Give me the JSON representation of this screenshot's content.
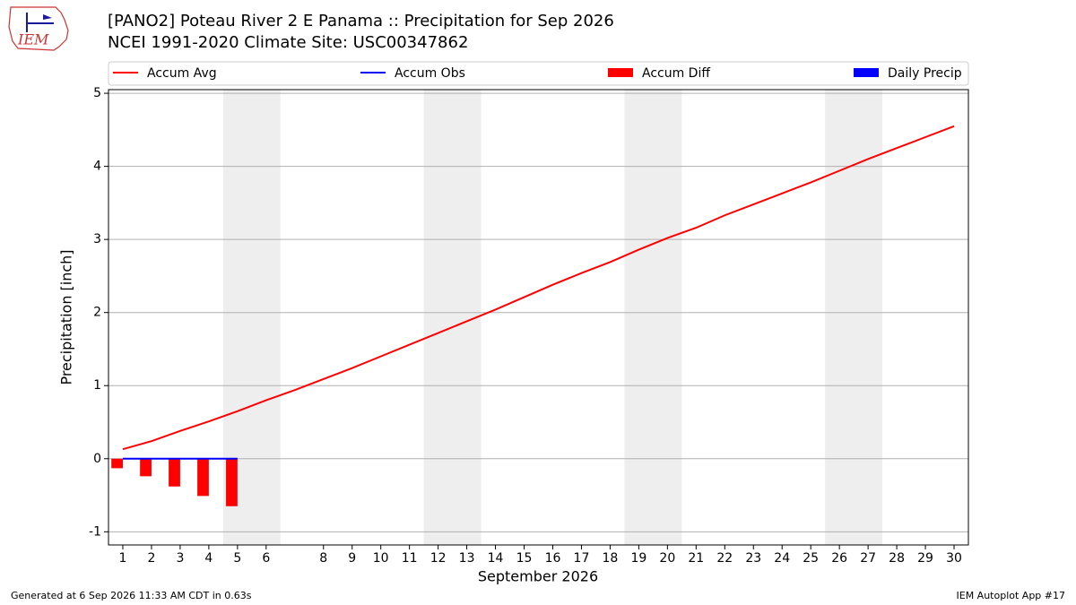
{
  "chart_data": {
    "type": "line",
    "title": "[PANO2] Poteau River 2 E Panama :: Precipitation for Sep 2026",
    "subtitle": "NCEI 1991-2020 Climate Site: USC00347862",
    "xlabel": "September 2026",
    "ylabel": "Precipitation [inch]",
    "logo_text": "IEM",
    "footer_left": "Generated at 6 Sep 2026 11:33 AM CDT in 0.63s",
    "footer_right": "IEM Autoplot App #17",
    "xlim": [
      0.5,
      30.5
    ],
    "ylim": [
      -1.18,
      5.05
    ],
    "xticks": [
      1,
      2,
      3,
      4,
      5,
      6,
      8,
      9,
      10,
      11,
      12,
      13,
      14,
      15,
      16,
      17,
      18,
      19,
      20,
      21,
      22,
      23,
      24,
      25,
      26,
      27,
      28,
      29,
      30
    ],
    "yticks": [
      -1,
      0,
      1,
      2,
      3,
      4,
      5
    ],
    "grid": true,
    "weekend_spans": [
      [
        4.5,
        6.5
      ],
      [
        11.5,
        13.5
      ],
      [
        18.5,
        20.5
      ],
      [
        25.5,
        27.5
      ]
    ],
    "x": [
      1,
      2,
      3,
      4,
      5,
      6,
      7,
      8,
      9,
      10,
      11,
      12,
      13,
      14,
      15,
      16,
      17,
      18,
      19,
      20,
      21,
      22,
      23,
      24,
      25,
      26,
      27,
      28,
      29,
      30
    ],
    "series": [
      {
        "name": "Accum Avg",
        "type": "line",
        "color": "#ff0000",
        "values": [
          0.13,
          0.24,
          0.38,
          0.51,
          0.65,
          0.8,
          0.94,
          1.09,
          1.24,
          1.4,
          1.56,
          1.72,
          1.88,
          2.04,
          2.21,
          2.38,
          2.54,
          2.69,
          2.86,
          3.02,
          3.16,
          3.33,
          3.48,
          3.63,
          3.78,
          3.94,
          4.1,
          4.25,
          4.4,
          4.55
        ]
      },
      {
        "name": "Accum Obs",
        "type": "line",
        "color": "#0000ff",
        "values": [
          0,
          0,
          0,
          0,
          0,
          null,
          null,
          null,
          null,
          null,
          null,
          null,
          null,
          null,
          null,
          null,
          null,
          null,
          null,
          null,
          null,
          null,
          null,
          null,
          null,
          null,
          null,
          null,
          null,
          null
        ]
      },
      {
        "name": "Accum Diff",
        "type": "bar",
        "color": "#ff0000",
        "values": [
          -0.13,
          -0.24,
          -0.38,
          -0.51,
          -0.65,
          null,
          null,
          null,
          null,
          null,
          null,
          null,
          null,
          null,
          null,
          null,
          null,
          null,
          null,
          null,
          null,
          null,
          null,
          null,
          null,
          null,
          null,
          null,
          null,
          null
        ]
      },
      {
        "name": "Daily Precip",
        "type": "bar",
        "color": "#0000ff",
        "values": [
          0,
          0,
          0,
          0,
          0,
          null,
          null,
          null,
          null,
          null,
          null,
          null,
          null,
          null,
          null,
          null,
          null,
          null,
          null,
          null,
          null,
          null,
          null,
          null,
          null,
          null,
          null,
          null,
          null,
          null
        ]
      }
    ]
  }
}
